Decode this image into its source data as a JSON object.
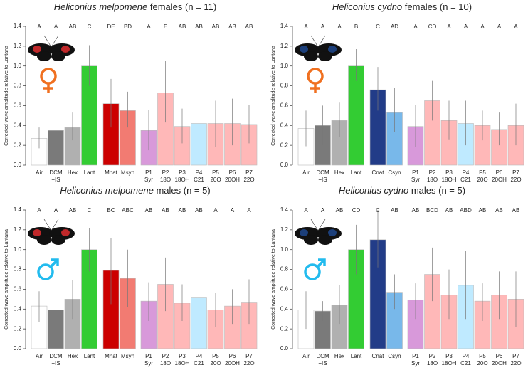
{
  "chart_data": [
    {
      "type": "bar",
      "title_species": "Heliconius melpomene",
      "title_rest": "females (n = 11)",
      "y_label": "Corrected wave amplitude relative to Lantana",
      "categories": [
        [
          "Air"
        ],
        [
          "DCM",
          "+IS"
        ],
        [
          "Hex"
        ],
        [
          "Lant"
        ],
        [
          "Mnat"
        ],
        [
          "Msyn"
        ],
        [
          "P1",
          "Syr"
        ],
        [
          "P2",
          "18O"
        ],
        [
          "P3",
          "18OH"
        ],
        [
          "P4",
          "C21"
        ],
        [
          "P5",
          "20O"
        ],
        [
          "P6",
          "20OH"
        ],
        [
          "P7",
          "22O"
        ]
      ],
      "values": [
        0.27,
        0.35,
        0.38,
        1.0,
        0.62,
        0.55,
        0.35,
        0.73,
        0.39,
        0.42,
        0.42,
        0.42,
        0.41
      ],
      "error_low": [
        0.17,
        0.2,
        0.25,
        0.8,
        0.38,
        0.38,
        0.15,
        0.43,
        0.22,
        0.18,
        0.18,
        0.2,
        0.22
      ],
      "error_high": [
        0.38,
        0.51,
        0.53,
        1.21,
        0.87,
        0.74,
        0.56,
        1.05,
        0.57,
        0.65,
        0.65,
        0.67,
        0.61
      ],
      "letters": [
        "A",
        "A",
        "AB",
        "C",
        "DE",
        "BD",
        "A",
        "E",
        "AB",
        "AB",
        "AB",
        "AB",
        "AB"
      ],
      "colors": [
        "#ffffff",
        "#7a7a7a",
        "#b0b0b0",
        "#33cc33",
        "#cc0000",
        "#f27b72",
        "#d899da",
        "#ffb8b8",
        "#ffb8b8",
        "#bfeaff",
        "#ffb8b8",
        "#ffb8b8",
        "#ffb8b8"
      ],
      "ylim": [
        0,
        1.4
      ],
      "yticks": [
        {
          "value": 0,
          "label": "0.0"
        },
        0.2,
        0.4,
        0.6,
        0.8,
        {
          "value": 1,
          "label": "1.0"
        },
        1.2,
        1.4
      ]
    },
    {
      "type": "bar",
      "title_species": "Heliconius cydno",
      "title_rest": "females (n = 10)",
      "y_label": "Corrected wave amplitude relative to Lantana",
      "categories": [
        [
          "Air"
        ],
        [
          "DCM",
          "+IS"
        ],
        [
          "Hex"
        ],
        [
          "Lant"
        ],
        [
          "Cnat"
        ],
        [
          "Csyn"
        ],
        [
          "P1",
          "Syr"
        ],
        [
          "P2",
          "18O"
        ],
        [
          "P3",
          "18OH"
        ],
        [
          "P4",
          "C21"
        ],
        [
          "P5",
          "20O"
        ],
        [
          "P6",
          "20OH"
        ],
        [
          "P7",
          "22O"
        ]
      ],
      "values": [
        0.37,
        0.4,
        0.45,
        1.0,
        0.76,
        0.53,
        0.39,
        0.65,
        0.45,
        0.42,
        0.4,
        0.36,
        0.4
      ],
      "error_low": [
        0.19,
        0.2,
        0.28,
        0.85,
        0.55,
        0.33,
        0.18,
        0.45,
        0.26,
        0.2,
        0.25,
        0.2,
        0.2
      ],
      "error_high": [
        0.55,
        0.6,
        0.63,
        1.17,
        0.99,
        0.78,
        0.61,
        0.85,
        0.65,
        0.65,
        0.55,
        0.53,
        0.62
      ],
      "letters": [
        "A",
        "A",
        "A",
        "B",
        "C",
        "AD",
        "A",
        "CD",
        "A",
        "A",
        "A",
        "A",
        "A"
      ],
      "colors": [
        "#ffffff",
        "#7a7a7a",
        "#b0b0b0",
        "#33cc33",
        "#223c88",
        "#78b8ea",
        "#d899da",
        "#ffb8b8",
        "#ffb8b8",
        "#bfeaff",
        "#ffb8b8",
        "#ffb8b8",
        "#ffb8b8"
      ],
      "ylim": [
        0,
        1.4
      ],
      "yticks": [
        {
          "value": 0,
          "label": "0.0"
        },
        0.2,
        0.4,
        0.6,
        0.8,
        {
          "value": 1,
          "label": "1.0"
        },
        1.2,
        1.4
      ]
    },
    {
      "type": "bar",
      "title_species": "Heliconius melpomene",
      "title_rest": "males (n = 5)",
      "y_label": "Corrected wave amplitude relative to Lantana",
      "categories": [
        [
          "Air"
        ],
        [
          "DCM",
          "+IS"
        ],
        [
          "Hex"
        ],
        [
          "Lant"
        ],
        [
          "Mnat"
        ],
        [
          "Msyn"
        ],
        [
          "P1",
          "Syr"
        ],
        [
          "P2",
          "18O"
        ],
        [
          "P3",
          "18OH"
        ],
        [
          "P4",
          "C21"
        ],
        [
          "P5",
          "20O"
        ],
        [
          "P6",
          "20OH"
        ],
        [
          "P7",
          "22O"
        ]
      ],
      "values": [
        0.43,
        0.39,
        0.5,
        1.0,
        0.79,
        0.71,
        0.48,
        0.65,
        0.46,
        0.52,
        0.39,
        0.43,
        0.47
      ],
      "error_low": [
        0.27,
        0.22,
        0.3,
        0.78,
        0.45,
        0.42,
        0.28,
        0.38,
        0.28,
        0.22,
        0.22,
        0.25,
        0.25
      ],
      "error_high": [
        0.58,
        0.57,
        0.69,
        1.22,
        1.12,
        1.0,
        0.67,
        0.92,
        0.65,
        0.82,
        0.56,
        0.6,
        0.7
      ],
      "letters": [
        "A",
        "A",
        "AB",
        "C",
        "BC",
        "ABC",
        "AB",
        "AB",
        "AB",
        "AB",
        "A",
        "A",
        "A"
      ],
      "colors": [
        "#ffffff",
        "#7a7a7a",
        "#b0b0b0",
        "#33cc33",
        "#cc0000",
        "#f27b72",
        "#d899da",
        "#ffb8b8",
        "#ffb8b8",
        "#bfeaff",
        "#ffb8b8",
        "#ffb8b8",
        "#ffb8b8"
      ],
      "ylim": [
        0,
        1.4
      ],
      "yticks": [
        {
          "value": 0,
          "label": "0.0"
        },
        0.2,
        0.4,
        0.6,
        0.8,
        {
          "value": 1,
          "label": "1.0"
        },
        1.2,
        1.4
      ]
    },
    {
      "type": "bar",
      "title_species": "Heliconius cydno",
      "title_rest": "males (n = 5)",
      "y_label": "Corrected wave amplitude relative to Lantana",
      "categories": [
        [
          "Air"
        ],
        [
          "DCM",
          "+IS"
        ],
        [
          "Hex"
        ],
        [
          "Lant"
        ],
        [
          "Cnat"
        ],
        [
          "Csyn"
        ],
        [
          "P1",
          "Syr"
        ],
        [
          "P2",
          "18O"
        ],
        [
          "P3",
          "18OH"
        ],
        [
          "P4",
          "C21"
        ],
        [
          "P5",
          "20O"
        ],
        [
          "P6",
          "20OH"
        ],
        [
          "P7",
          "22O"
        ]
      ],
      "values": [
        0.39,
        0.38,
        0.44,
        1.0,
        1.1,
        0.57,
        0.49,
        0.75,
        0.54,
        0.64,
        0.48,
        0.54,
        0.5
      ],
      "error_low": [
        0.2,
        0.28,
        0.25,
        0.75,
        0.82,
        0.4,
        0.3,
        0.48,
        0.3,
        0.3,
        0.28,
        0.3,
        0.22
      ],
      "error_high": [
        0.58,
        0.48,
        0.64,
        1.25,
        1.4,
        0.75,
        0.66,
        1.02,
        0.8,
        0.99,
        0.66,
        0.78,
        0.78
      ],
      "letters": [
        "A",
        "A",
        "AB",
        "CD",
        "C",
        "AB",
        "AB",
        "BCD",
        "AB",
        "ABD",
        "AB",
        "AB",
        "AB"
      ],
      "colors": [
        "#ffffff",
        "#7a7a7a",
        "#b0b0b0",
        "#33cc33",
        "#223c88",
        "#78b8ea",
        "#d899da",
        "#ffb8b8",
        "#ffb8b8",
        "#bfeaff",
        "#ffb8b8",
        "#ffb8b8",
        "#ffb8b8"
      ],
      "ylim": [
        0,
        1.4
      ],
      "yticks": [
        {
          "value": 0,
          "label": "0.0"
        },
        0.2,
        0.4,
        0.6,
        0.8,
        {
          "value": 1,
          "label": "1.0"
        },
        1.2,
        1.4
      ]
    }
  ]
}
